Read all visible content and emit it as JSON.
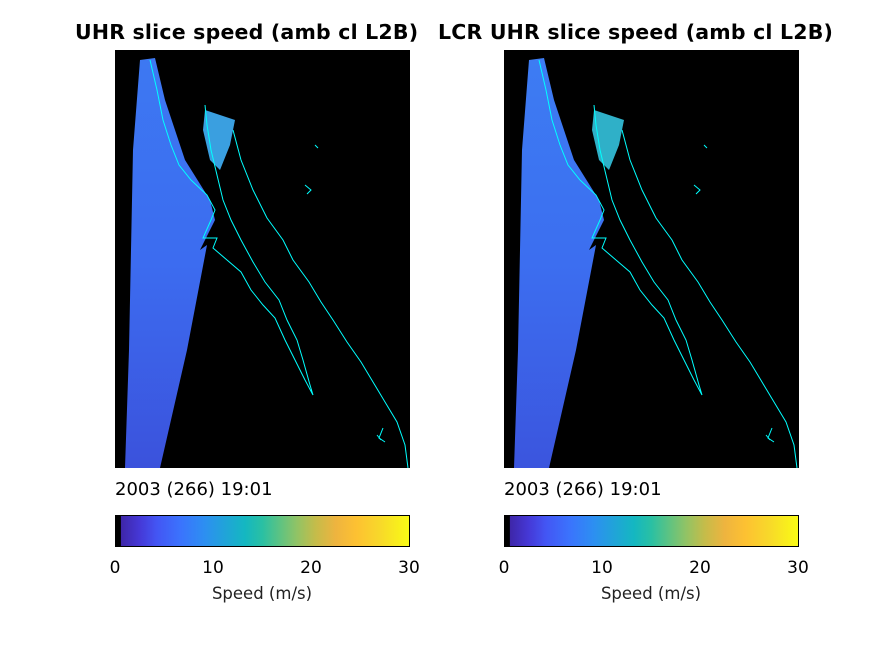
{
  "panels": [
    {
      "title": "UHR slice speed (amb cl L2B)",
      "date": "2003 (266) 19:01",
      "colorbar": {
        "label": "Speed (m/s)",
        "ticks": [
          "0",
          "10",
          "20",
          "30"
        ],
        "min": 0,
        "max": 30,
        "colormap": "parula"
      }
    },
    {
      "title": "LCR UHR slice speed (amb cl L2B)",
      "date": "2003 (266) 19:01",
      "colorbar": {
        "label": "Speed (m/s)",
        "ticks": [
          "0",
          "10",
          "20",
          "30"
        ],
        "min": 0,
        "max": 30,
        "colormap": "parula"
      }
    }
  ],
  "colors": {
    "background": "#000000",
    "coastline": "#00ffff",
    "swath": "#3a6cf0"
  }
}
